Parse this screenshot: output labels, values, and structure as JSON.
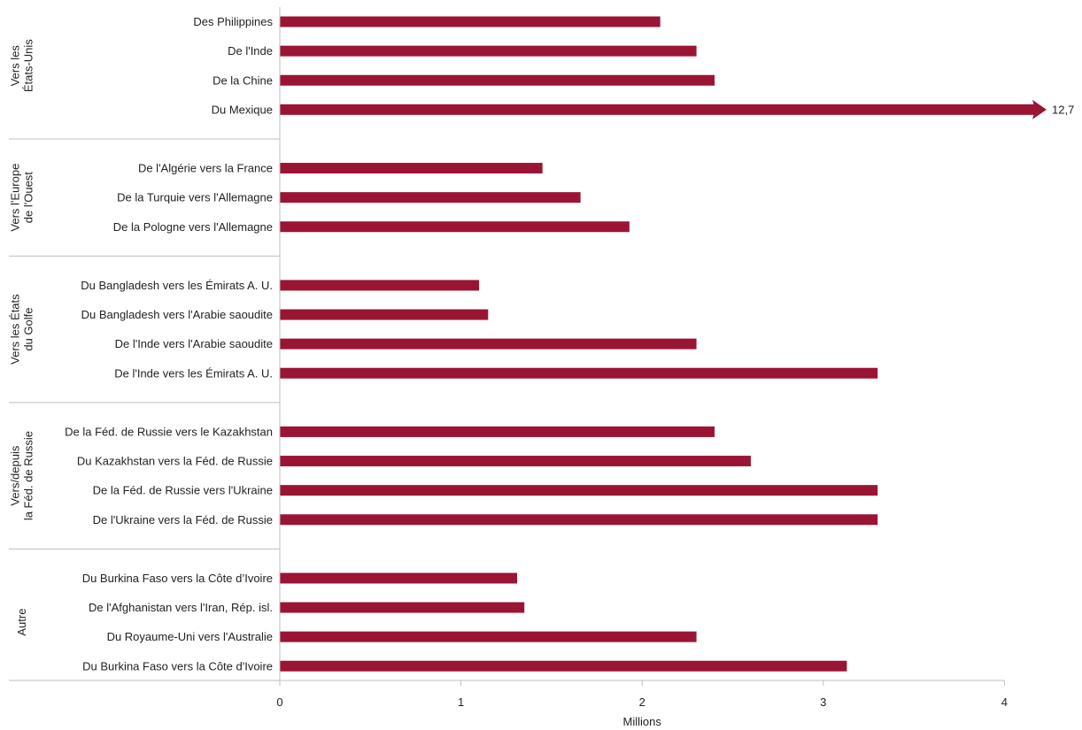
{
  "chart_data": {
    "type": "bar",
    "orientation": "horizontal",
    "xlabel": "Millions",
    "xlim": [
      0,
      4
    ],
    "xticks": [
      "0",
      "1",
      "2",
      "3",
      "4"
    ],
    "bar_color": "#9a1534",
    "grid": false,
    "groups": [
      {
        "name": "Vers les États-Unis",
        "name_lines": [
          "Vers les",
          "États-Unis"
        ],
        "items": [
          {
            "label": "Des Philippines",
            "value": 2.1
          },
          {
            "label": "De l'Inde",
            "value": 2.3
          },
          {
            "label": "De la Chine",
            "value": 2.4
          },
          {
            "label": "Du Mexique",
            "value": 12.7,
            "value_label": "12,7",
            "overflow": true
          }
        ]
      },
      {
        "name": "Vers l'Europe de l'Ouest",
        "name_lines": [
          "Vers l'Europe",
          "de l'Ouest"
        ],
        "items": [
          {
            "label": "De l'Algérie vers la France",
            "value": 1.45
          },
          {
            "label": "De la Turquie vers l'Allemagne",
            "value": 1.66
          },
          {
            "label": "De la Pologne vers l'Allemagne",
            "value": 1.93
          }
        ]
      },
      {
        "name": "Vers les États du Golfe",
        "name_lines": [
          "Vers les États",
          "du Golfe"
        ],
        "items": [
          {
            "label": "Du Bangladesh vers les Émirats A. U.",
            "value": 1.1
          },
          {
            "label": "Du Bangladesh vers l'Arabie saoudite",
            "value": 1.15
          },
          {
            "label": "De l'Inde vers l'Arabie saoudite",
            "value": 2.3
          },
          {
            "label": "De l'Inde vers les Émirats A. U.",
            "value": 3.3
          }
        ]
      },
      {
        "name": "Vers/depuis la Féd. de Russie",
        "name_lines": [
          "Vers/depuis",
          "la Féd. de Russie"
        ],
        "items": [
          {
            "label": "De la Féd. de Russie vers le Kazakhstan",
            "value": 2.4
          },
          {
            "label": "Du Kazakhstan vers la Féd. de Russie",
            "value": 2.6
          },
          {
            "label": "De la Féd. de Russie vers l'Ukraine",
            "value": 3.3
          },
          {
            "label": "De l'Ukraine vers la Féd. de Russie",
            "value": 3.3
          }
        ]
      },
      {
        "name": "Autre",
        "name_lines": [
          "Autre"
        ],
        "items": [
          {
            "label": "Du Burkina Faso vers la Côte d’Ivoire",
            "value": 1.31
          },
          {
            "label": "De l'Afghanistan vers l'Iran, Rép. isl.",
            "value": 1.35
          },
          {
            "label": "Du Royaume-Uni vers l'Australie",
            "value": 2.3
          },
          {
            "label": "Du Burkina Faso vers la Côte d'Ivoire",
            "value": 3.13
          }
        ]
      }
    ]
  }
}
